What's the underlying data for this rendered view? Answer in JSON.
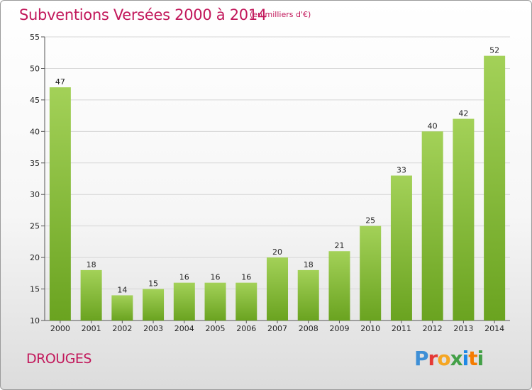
{
  "header": {
    "title": "Subventions Versées 2000 à 2014",
    "unit": "(en milliers d'€)"
  },
  "footer": {
    "place": "DROUGES",
    "logo": "Proxiti"
  },
  "colors": {
    "title": "#c2185b",
    "bar_top": "#a3d158",
    "bar_bottom": "#6aa320",
    "logo_letters": [
      "#3e8fd6",
      "#e53935",
      "#f5a623",
      "#43a047",
      "#1e88e5",
      "#f57c00",
      "#43a047"
    ]
  },
  "chart_data": {
    "type": "bar",
    "title": "Subventions Versées 2000 à 2014",
    "subtitle": "(en milliers d'€)",
    "xlabel": "",
    "ylabel": "",
    "categories": [
      "2000",
      "2001",
      "2002",
      "2003",
      "2004",
      "2005",
      "2006",
      "2007",
      "2008",
      "2009",
      "2010",
      "2011",
      "2012",
      "2013",
      "2014"
    ],
    "values": [
      47,
      18,
      14,
      15,
      16,
      16,
      16,
      20,
      18,
      21,
      25,
      33,
      40,
      42,
      52
    ],
    "ylim": [
      10,
      55
    ],
    "yticks": [
      10,
      15,
      20,
      25,
      30,
      35,
      40,
      45,
      50,
      55
    ],
    "grid": true,
    "legend": "none"
  }
}
